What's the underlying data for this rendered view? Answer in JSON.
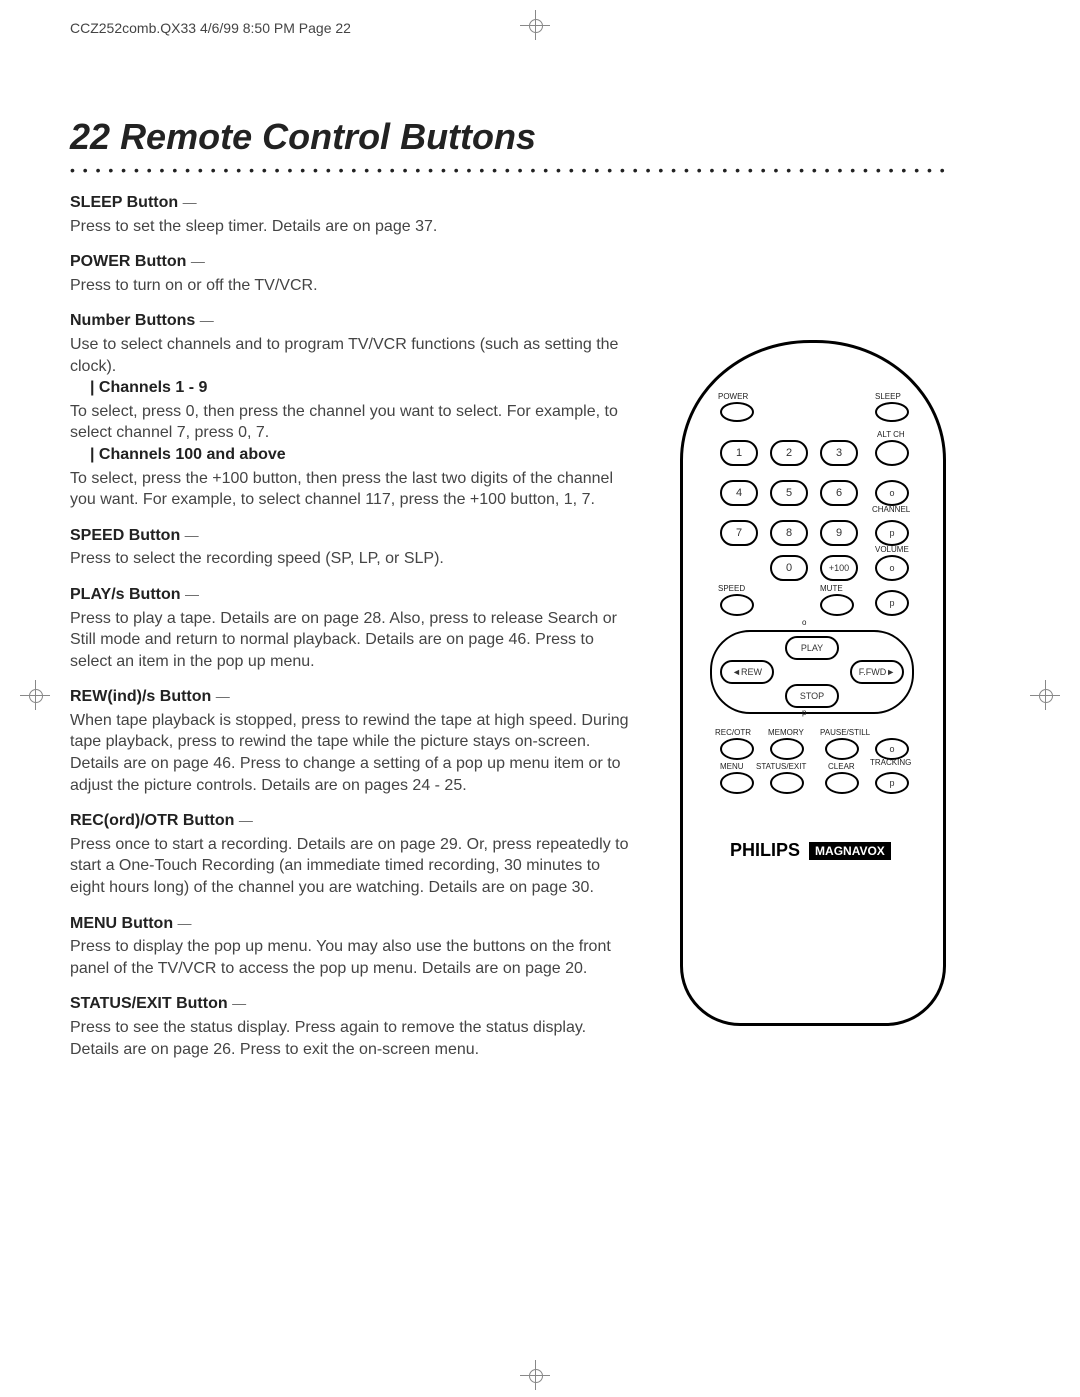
{
  "header": "CCZ252comb.QX33  4/6/99 8:50 PM  Page 22",
  "page_number": "22",
  "title": "Remote Control Buttons",
  "sections": [
    {
      "title": "SLEEP Button",
      "body": "Press to set the sleep timer. Details are on page 37."
    },
    {
      "title": "POWER Button",
      "body": "Press to turn on or off the TV/VCR."
    },
    {
      "title": "Number Buttons",
      "body": "Use to select channels and to program TV/VCR functions (such as setting the clock).",
      "subs": [
        {
          "title": "Channels 1 - 9",
          "body": "To select, press 0, then press the channel you want to select. For example, to select channel 7, press 0, 7."
        },
        {
          "title": "Channels 100 and above",
          "body": "To select, press the +100 button, then press the last two digits of the channel you want. For example, to select channel 117, press the +100 button, 1, 7."
        }
      ]
    },
    {
      "title": "SPEED Button",
      "body": "Press to select the recording speed (SP, LP, or SLP)."
    },
    {
      "title": "PLAY/s  Button",
      "body": "Press to play a tape. Details are on page 28. Also, press to release Search or Still mode and return to normal playback. Details are on page 46. Press to select an item in the pop up menu."
    },
    {
      "title": "REW(ind)/s  Button",
      "body": "When tape playback is stopped, press to rewind the tape at high speed. During tape playback, press to rewind the tape while the picture stays on-screen. Details are on page 46. Press to change a setting of a pop up menu item or to adjust the picture controls. Details are on pages 24 - 25."
    },
    {
      "title": "REC(ord)/OTR Button",
      "body": "Press once to start a recording. Details are on page 29. Or, press repeatedly to start a One-Touch Recording (an immediate timed recording, 30 minutes to eight hours long) of the channel you are watching. Details are on page 30."
    },
    {
      "title": "MENU Button",
      "body": "Press to display the pop up menu. You may also use the buttons on the front panel of the TV/VCR to access the pop up menu. Details are on page 20."
    },
    {
      "title": "STATUS/EXIT Button",
      "body": "Press to see the status display. Press again to remove the status display. Details are on page 26.\nPress to exit the on-screen menu."
    }
  ],
  "remote": {
    "labels": {
      "power": "POWER",
      "sleep": "SLEEP",
      "altch": "ALT CH",
      "channel": "CHANNEL",
      "volume": "VOLUME",
      "speed": "SPEED",
      "mute": "MUTE",
      "play": "PLAY",
      "rew": "REW",
      "ffwd": "F.FWD",
      "stop": "STOP",
      "recotr": "REC/OTR",
      "memory": "MEMORY",
      "pausestill": "PAUSE/STILL",
      "tracking": "TRACKING",
      "menu": "MENU",
      "statusexit": "STATUS/EXIT",
      "clear": "CLEAR",
      "plus100": "+100"
    },
    "numbers": [
      "1",
      "2",
      "3",
      "4",
      "5",
      "6",
      "7",
      "8",
      "9",
      "0"
    ],
    "brand1": "PHILIPS",
    "brand2": "MAGNAVOX",
    "colors": {
      "outline": "#000000",
      "background": "#ffffff",
      "text": "#222222"
    }
  }
}
